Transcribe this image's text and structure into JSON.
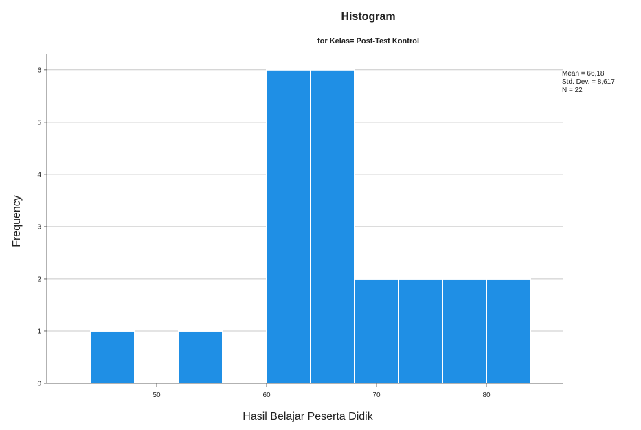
{
  "chart_data": {
    "type": "bar",
    "chart_kind": "histogram",
    "title": "Histogram",
    "subtitle": "for Kelas= Post-Test Kontrol",
    "xlabel": "Hasil Belajar Peserta Didik",
    "ylabel": "Frequency",
    "bins": [
      {
        "start": 44,
        "end": 48,
        "count": 1
      },
      {
        "start": 48,
        "end": 52,
        "count": 0
      },
      {
        "start": 52,
        "end": 56,
        "count": 1
      },
      {
        "start": 56,
        "end": 60,
        "count": 0
      },
      {
        "start": 60,
        "end": 64,
        "count": 6
      },
      {
        "start": 64,
        "end": 68,
        "count": 6
      },
      {
        "start": 68,
        "end": 72,
        "count": 2
      },
      {
        "start": 72,
        "end": 76,
        "count": 2
      },
      {
        "start": 76,
        "end": 80,
        "count": 2
      },
      {
        "start": 80,
        "end": 84,
        "count": 2
      }
    ],
    "xticks": [
      50,
      60,
      70,
      80
    ],
    "yticks": [
      0,
      1,
      2,
      3,
      4,
      5,
      6
    ],
    "xlim": [
      40,
      87
    ],
    "ylim": [
      0,
      6.3
    ],
    "grid": "horizontal",
    "legend": "none",
    "stats": {
      "mean": "Mean = 66,18",
      "std": "Std. Dev. = 8,617",
      "n": "N = 22",
      "placement": "right"
    }
  },
  "colors": {
    "bar_fill": "#1f8fe5",
    "bar_edge": "#ffffff",
    "grid": "#c8c8c8",
    "axis": "#666666",
    "text": "#222222"
  }
}
